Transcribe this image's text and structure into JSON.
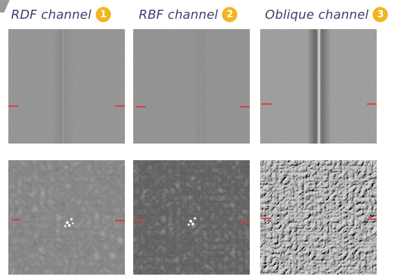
{
  "headers": [
    {
      "label": "RDF channel",
      "badge": "1"
    },
    {
      "label": "RBF channel",
      "badge": "2"
    },
    {
      "label": "Oblique channel",
      "badge": "3"
    }
  ],
  "colors": {
    "header_text": "#3d3f6e",
    "badge_fill": "#f2b51f",
    "marker": "#e03a3a"
  },
  "tiles": [
    {
      "row": "top",
      "channel": "RDF",
      "content": "smooth surface with faint vertical ridge"
    },
    {
      "row": "top",
      "channel": "RBF",
      "content": "smooth surface, very low contrast"
    },
    {
      "row": "top",
      "channel": "Oblique",
      "content": "smooth surface with pronounced vertical ridge"
    },
    {
      "row": "bottom",
      "channel": "RDF",
      "content": "pebbled leather texture with bright speck cluster"
    },
    {
      "row": "bottom",
      "channel": "RBF",
      "content": "darker leather texture with bright speck cluster"
    },
    {
      "row": "bottom",
      "channel": "Oblique",
      "content": "embossed leather texture"
    }
  ]
}
